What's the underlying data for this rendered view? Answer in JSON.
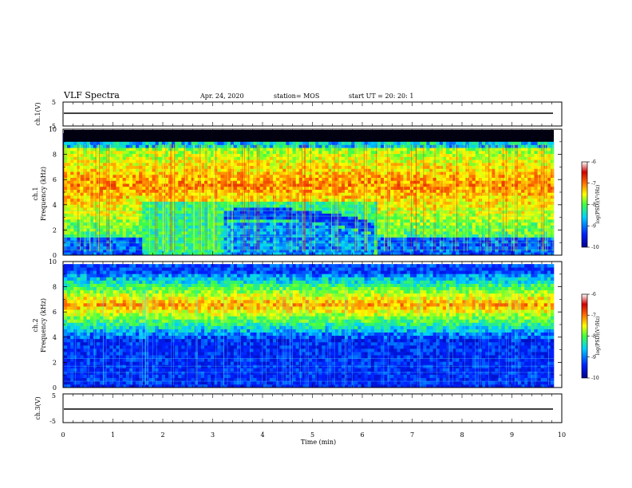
{
  "header": {
    "title": "VLF Spectra",
    "date": "Apr. 24, 2020",
    "station": "station= MOS",
    "start": "start  UT  =    20: 20: 1"
  },
  "chart_data": {
    "type": "heatmap",
    "time_axis": {
      "label": "Time  (min)",
      "range": [
        0,
        10
      ],
      "ticks": [
        "0",
        "1",
        "2",
        "3",
        "4",
        "5",
        "6",
        "7",
        "8",
        "9",
        "10"
      ]
    },
    "panels": [
      {
        "id": "ch1-waveform",
        "type": "line",
        "ylabel": "ch.1(V)",
        "ylim": [
          -5,
          5
        ],
        "yticks": [
          "5",
          "-5"
        ],
        "trace_level": 0
      },
      {
        "id": "ch1-spectrogram",
        "type": "heatmap",
        "ylabel_channel": "ch.1",
        "ylabel": "Frequency  (kHz)",
        "ylim": [
          0,
          10
        ],
        "yticks": [
          "0",
          "2",
          "4",
          "6",
          "8",
          "10"
        ],
        "colorbar": {
          "label": "log(PSD)(V²/Hz)",
          "range": [
            -10,
            -6
          ],
          "ticks": [
            "-6",
            "-7",
            "-8",
            "-9",
            "-10"
          ],
          "colors": [
            "#00008f",
            "#0020ff",
            "#00d0ff",
            "#40ff40",
            "#ffff00",
            "#ff7000",
            "#d00000",
            "#ffffff"
          ]
        },
        "features": {
          "noise_floor_above_khz": 9,
          "band_khz": [
            1.5,
            8.5
          ],
          "quiet_interval_min": [
            1.6,
            6.3
          ],
          "arc_peak_min": 4.0,
          "arc_peak_khz": 3.3
        }
      },
      {
        "id": "ch2-spectrogram",
        "type": "heatmap",
        "ylabel_channel": "ch.2",
        "ylabel": "Frequency  (kHz)",
        "ylim": [
          0,
          10
        ],
        "yticks": [
          "0",
          "2",
          "4",
          "6",
          "8",
          "10"
        ],
        "colorbar": {
          "label": "log(PSD)(V²/Hz)",
          "range": [
            -10,
            -6
          ],
          "ticks": [
            "-6",
            "-7",
            "-8",
            "-9",
            "-10"
          ],
          "colors": [
            "#00008f",
            "#0020ff",
            "#00d0ff",
            "#40ff40",
            "#ffff00",
            "#ff7000",
            "#d00000",
            "#ffffff"
          ]
        },
        "features": {
          "band_center_khz": 6.6
        }
      },
      {
        "id": "ch3-waveform",
        "type": "line",
        "ylabel": "ch.3(V)",
        "ylim": [
          -5,
          5
        ],
        "yticks": [
          "5",
          "-5"
        ],
        "trace_level": 0
      }
    ]
  }
}
